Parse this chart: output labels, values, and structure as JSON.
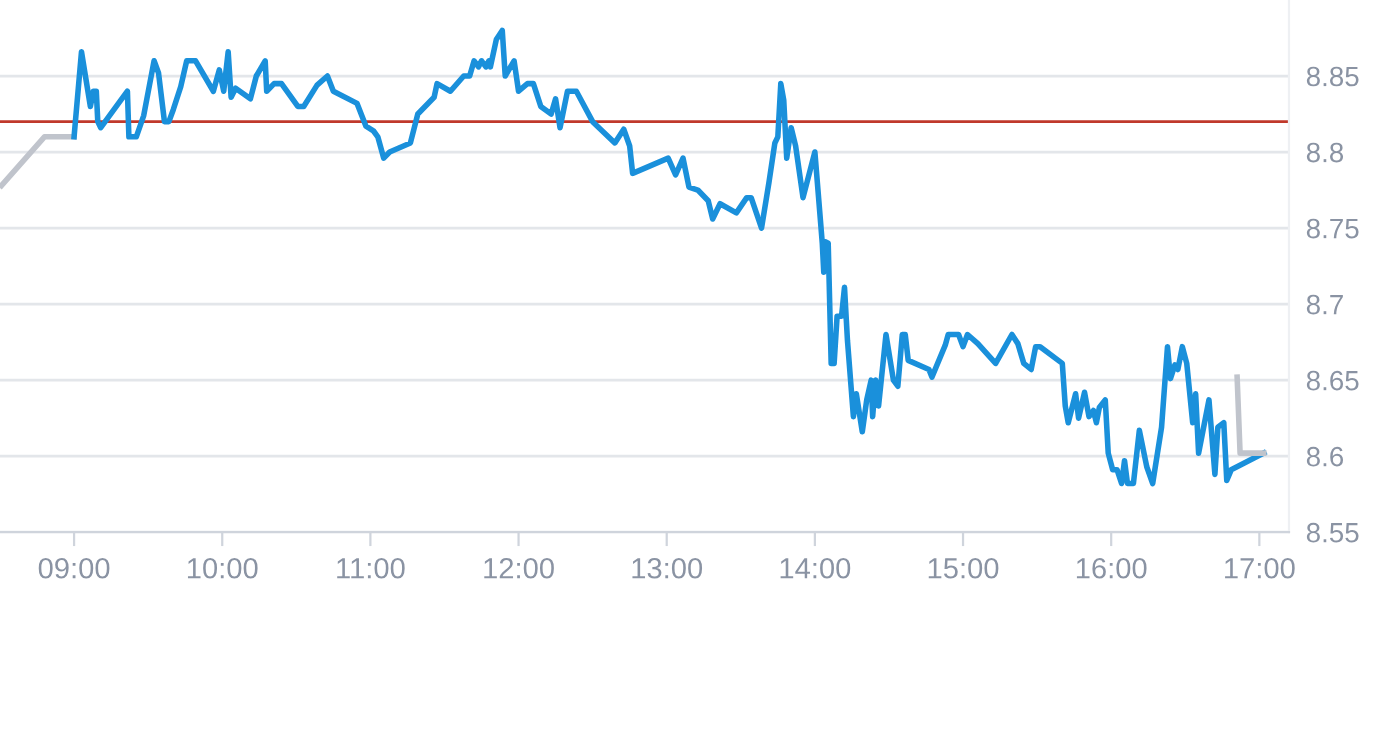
{
  "chart_data": {
    "type": "line",
    "xlim": [
      8.5,
      17.2
    ],
    "ylim": [
      8.55,
      8.9
    ],
    "xticks": [
      {
        "value": 9,
        "label": "09:00"
      },
      {
        "value": 10,
        "label": "10:00"
      },
      {
        "value": 11,
        "label": "11:00"
      },
      {
        "value": 12,
        "label": "12:00"
      },
      {
        "value": 13,
        "label": "13:00"
      },
      {
        "value": 14,
        "label": "14:00"
      },
      {
        "value": 15,
        "label": "15:00"
      },
      {
        "value": 16,
        "label": "16:00"
      },
      {
        "value": 17,
        "label": "17:00"
      }
    ],
    "yticks": [
      8.55,
      8.6,
      8.65,
      8.7,
      8.75,
      8.8,
      8.85
    ],
    "grid": "y",
    "marker": "none",
    "line_style": "solid",
    "ref_lines": [
      {
        "axis": "y",
        "value": 8.82,
        "color": "#c0392b"
      }
    ],
    "series": [
      {
        "color": "#c0c4cc",
        "x": [
          8.51,
          8.8,
          9.0
        ],
        "values": [
          8.778,
          8.81,
          8.81
        ]
      },
      {
        "color": "#1a90db",
        "x": [
          9.0,
          9.05,
          9.11,
          9.13,
          9.15,
          9.16,
          9.18,
          9.36,
          9.37,
          9.42,
          9.47,
          9.54,
          9.57,
          9.61,
          9.64,
          9.67,
          9.72,
          9.76,
          9.82,
          9.94,
          9.98,
          10.01,
          10.04,
          10.06,
          10.09,
          10.19,
          10.23,
          10.29,
          10.3,
          10.35,
          10.4,
          10.51,
          10.55,
          10.64,
          10.71,
          10.75,
          10.91,
          10.97,
          11.02,
          11.05,
          11.09,
          11.13,
          11.27,
          11.32,
          11.43,
          11.45,
          11.54,
          11.63,
          11.67,
          11.7,
          11.73,
          11.75,
          11.78,
          11.8,
          11.81,
          11.85,
          11.89,
          11.91,
          11.97,
          12.0,
          12.06,
          12.1,
          12.15,
          12.22,
          12.25,
          12.28,
          12.33,
          12.39,
          12.5,
          12.65,
          12.71,
          12.75,
          12.77,
          13.01,
          13.06,
          13.11,
          13.15,
          13.21,
          13.28,
          13.31,
          13.36,
          13.47,
          13.54,
          13.57,
          13.64,
          13.69,
          13.73,
          13.75,
          13.77,
          13.79,
          13.81,
          13.84,
          13.87,
          13.92,
          14.0,
          14.05,
          14.06,
          14.07,
          14.09,
          14.11,
          14.13,
          14.15,
          14.18,
          14.2,
          14.22,
          14.26,
          14.28,
          14.32,
          14.35,
          14.38,
          14.39,
          14.41,
          14.43,
          14.48,
          14.53,
          14.56,
          14.59,
          14.61,
          14.63,
          14.77,
          14.79,
          14.88,
          14.9,
          14.97,
          15.0,
          15.03,
          15.1,
          15.22,
          15.33,
          15.37,
          15.41,
          15.46,
          15.49,
          15.52,
          15.67,
          15.69,
          15.71,
          15.76,
          15.78,
          15.82,
          15.85,
          15.88,
          15.9,
          15.92,
          15.96,
          15.98,
          16.01,
          16.04,
          16.07,
          16.09,
          16.11,
          16.15,
          16.19,
          16.24,
          16.28,
          16.34,
          16.38,
          16.4,
          16.43,
          16.45,
          16.48,
          16.51,
          16.55,
          16.57,
          16.59,
          16.66,
          16.7,
          16.72,
          16.76,
          16.78,
          16.81,
          17.03
        ],
        "values": [
          8.81,
          8.866,
          8.83,
          8.84,
          8.84,
          8.82,
          8.816,
          8.84,
          8.81,
          8.81,
          8.824,
          8.86,
          8.852,
          8.82,
          8.82,
          8.828,
          8.843,
          8.86,
          8.86,
          8.84,
          8.854,
          8.84,
          8.866,
          8.836,
          8.842,
          8.835,
          8.85,
          8.86,
          8.84,
          8.845,
          8.845,
          8.83,
          8.83,
          8.844,
          8.85,
          8.84,
          8.832,
          8.817,
          8.814,
          8.81,
          8.796,
          8.8,
          8.806,
          8.825,
          8.836,
          8.845,
          8.84,
          8.85,
          8.85,
          8.86,
          8.856,
          8.86,
          8.856,
          8.86,
          8.856,
          8.874,
          8.88,
          8.85,
          8.86,
          8.84,
          8.845,
          8.845,
          8.83,
          8.825,
          8.835,
          8.816,
          8.84,
          8.84,
          8.82,
          8.806,
          8.815,
          8.804,
          8.786,
          8.796,
          8.785,
          8.796,
          8.777,
          8.775,
          8.768,
          8.756,
          8.766,
          8.76,
          8.77,
          8.77,
          8.75,
          8.78,
          8.806,
          8.81,
          8.845,
          8.834,
          8.796,
          8.816,
          8.804,
          8.77,
          8.8,
          8.74,
          8.721,
          8.741,
          8.74,
          8.661,
          8.661,
          8.692,
          8.692,
          8.711,
          8.676,
          8.626,
          8.641,
          8.616,
          8.637,
          8.65,
          8.626,
          8.65,
          8.633,
          8.68,
          8.65,
          8.646,
          8.68,
          8.68,
          8.663,
          8.657,
          8.652,
          8.673,
          8.68,
          8.68,
          8.672,
          8.68,
          8.674,
          8.661,
          8.68,
          8.674,
          8.661,
          8.657,
          8.672,
          8.672,
          8.661,
          8.633,
          8.622,
          8.641,
          8.625,
          8.642,
          8.626,
          8.63,
          8.622,
          8.632,
          8.637,
          8.602,
          8.591,
          8.591,
          8.582,
          8.597,
          8.582,
          8.582,
          8.617,
          8.593,
          8.582,
          8.619,
          8.672,
          8.651,
          8.66,
          8.657,
          8.672,
          8.661,
          8.622,
          8.641,
          8.602,
          8.637,
          8.588,
          8.619,
          8.622,
          8.584,
          8.591,
          8.602
        ]
      },
      {
        "color": "#c0c4cc",
        "x": [
          16.85,
          16.87,
          17.03
        ],
        "values": [
          8.652,
          8.602,
          8.602
        ]
      }
    ]
  }
}
